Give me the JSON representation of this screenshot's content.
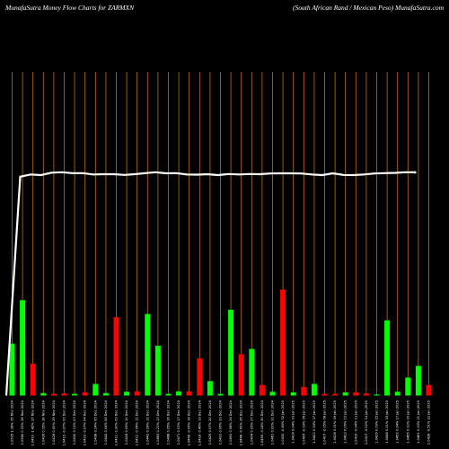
{
  "header": {
    "left_title": "MunafaSutra  Money Flow  Charts for ZARMXN",
    "right_title": "(South African  Rand / Mexican  Peso) MunafaSutra.com"
  },
  "colors": {
    "background": "#000000",
    "vertical_grid": "#b8741a",
    "up_bar": "#00ff00",
    "down_bar": "#ff0000",
    "line": "#ffffff"
  },
  "chart_data": {
    "type": "bar",
    "title": "MunafaSutra  Money Flow  Charts for ZARMXN",
    "subtitle": "(South African  Rand / Mexican  Peso) MunafaSutra.com",
    "ylim": [
      0,
      100
    ],
    "categories": [
      "1.0525 1.18% 25 Nov 2024",
      "1.0560 0.33% 26 Nov 2024",
      "1.0410 -1.42% 27 Nov 2024",
      "1.0426 0.15% 28 Nov 2024",
      "1.0426 0.00% 29 Nov 2024",
      "1.0419 -0.07% 02 Dec 2024",
      "1.0430 0.11% 03 Dec 2024",
      "1.0423 -0.07% 04 Dec 2024",
      "1.0438 0.14% 05 Dec 2024",
      "1.0442 0.04% 06 Dec 2024",
      "1.0411 -0.30% 09 Dec 2024",
      "1.0416 0.05% 10 Dec 2024",
      "1.0412 -0.04% 11 Dec 2024",
      "1.0441 0.28% 12 Dec 2024",
      "1.0463 0.21% 13 Dec 2024",
      "1.0468 0.05% 16 Dec 2024",
      "1.0471 0.03% 17 Dec 2024",
      "1.0466 -0.05% 18 Dec 2024",
      "1.0418 -0.46% 19 Dec 2024",
      "1.0425 0.07% 20 Dec 2024",
      "1.0431 0.06% 23 Dec 2024",
      "1.0491 0.58% 24 Dec 2024",
      "1.0448 -0.41% 26 Dec 2024",
      "1.0474 0.25% 27 Dec 2024",
      "1.0459 -0.14% 30 Dec 2024",
      "1.0461 0.02% 31 Dec 2024",
      "1.0410 -0.49% 02 Jan 2025",
      "1.0414 0.04% 03 Jan 2025",
      "1.0405 -0.09% 06 Jan 2025",
      "1.0422 0.16% 07 Jan 2025",
      "1.0417 -0.05% 08 Jan 2025",
      "1.0418 0.01% 09 Jan 2025",
      "1.0423 0.05% 10 Jan 2025",
      "1.0419 -0.04% 13 Jan 2025",
      "1.0417 -0.02% 14 Jan 2025",
      "1.0426 0.09% 15 Jan 2025",
      "1.0448 0.21% 16 Jan 2025",
      "1.0452 0.04% 17 Jan 2025",
      "1.0465 0.12% 20 Jan 2025",
      "1.0481 0.15% 21 Jan 2025",
      "1.0428 -0.51% 22 Jan 2025"
    ],
    "series": [
      {
        "type": "bar",
        "values": [
          24.5,
          45.0,
          15.0,
          1.2,
          0.8,
          1.0,
          0.8,
          1.5,
          5.5,
          1.2,
          37.0,
          1.8,
          2.0,
          38.5,
          23.5,
          0.8,
          2.0,
          2.0,
          17.5,
          6.8,
          0.8,
          40.5,
          19.5,
          22.0,
          5.0,
          1.8,
          50.0,
          1.5,
          4.0,
          5.5,
          0.8,
          0.8,
          1.5,
          1.5,
          1.0,
          0.5,
          35.5,
          1.8,
          8.5,
          14.0,
          5.0
        ],
        "colors": [
          "up",
          "up",
          "down",
          "up",
          "down",
          "down",
          "up",
          "down",
          "up",
          "up",
          "down",
          "up",
          "down",
          "up",
          "up",
          "up",
          "up",
          "down",
          "down",
          "up",
          "up",
          "up",
          "down",
          "up",
          "down",
          "up",
          "down",
          "up",
          "down",
          "up",
          "down",
          "down",
          "up",
          "down",
          "down",
          "up",
          "up",
          "up",
          "up",
          "up",
          "down"
        ]
      },
      {
        "type": "line",
        "values": [
          0,
          97.5,
          98.5,
          98.2,
          99.3,
          99.5,
          99.1,
          99.1,
          98.5,
          98.6,
          98.6,
          98.3,
          98.6,
          99.1,
          99.5,
          99.0,
          99.1,
          98.5,
          98.4,
          98.6,
          98.2,
          98.7,
          98.5,
          98.7,
          98.6,
          98.9,
          99.0,
          99.0,
          98.9,
          98.5,
          98.2,
          99.0,
          98.3,
          98.2,
          98.5,
          98.9,
          99.1,
          99.2,
          99.5,
          99.5,
          99.2
        ]
      }
    ]
  }
}
